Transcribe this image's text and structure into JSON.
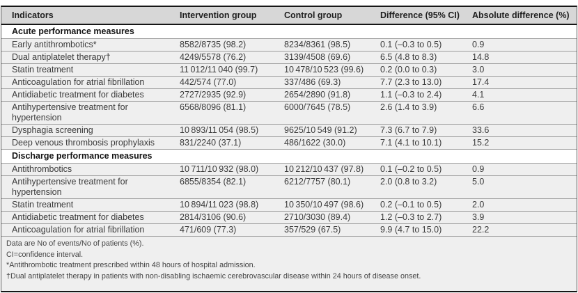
{
  "colors": {
    "header_bg": "#d7d7d7",
    "row_bg": "#efefef",
    "section_bg": "#ffffff",
    "rule_dark": "#161616",
    "rule_light": "#9b9b9b",
    "text": "#3b3b3b"
  },
  "table": {
    "columns": [
      "Indicators",
      "Intervention group",
      "Control group",
      "Difference (95% CI)",
      "Absolute difference (%)"
    ],
    "sections": [
      {
        "title": "Acute performance measures",
        "rows": [
          [
            "Early antithrombotics*",
            "8582/8735 (98.2)",
            "8234/8361 (98.5)",
            "0.1 (–0.3 to 0.5)",
            "0.9"
          ],
          [
            "Dual antiplatelet therapy†",
            "4249/5578 (76.2)",
            "3139/4508 (69.6)",
            "6.5 (4.8 to 8.3)",
            "14.8"
          ],
          [
            "Statin treatment",
            "11 012/11 040 (99.7)",
            "10 478/10 523 (99.6)",
            "0.2 (0.0 to 0.3)",
            "3.0"
          ],
          [
            "Anticoagulation for atrial fibrillation",
            "442/574 (77.0)",
            "337/486 (69.3)",
            "7.7 (2.3 to 13.0)",
            "17.4"
          ],
          [
            "Antidiabetic treatment for diabetes",
            "2727/2935 (92.9)",
            "2654/2890 (91.8)",
            "1.1 (–0.3 to 2.4)",
            "4.1"
          ],
          [
            "Antihypertensive treatment for hypertension",
            "6568/8096 (81.1)",
            "6000/7645 (78.5)",
            "2.6 (1.4 to 3.9)",
            "6.6"
          ],
          [
            "Dysphagia screening",
            "10 893/11 054 (98.5)",
            "9625/10 549 (91.2)",
            "7.3 (6.7 to 7.9)",
            "33.6"
          ],
          [
            "Deep venous thrombosis prophylaxis",
            "831/2240 (37.1)",
            "486/1622 (30.0)",
            "7.1 (4.1 to 10.1)",
            "15.2"
          ]
        ]
      },
      {
        "title": "Discharge performance measures",
        "rows": [
          [
            "Antithrombotics",
            "10 711/10 932 (98.0)",
            "10 212/10 437 (97.8)",
            "0.1 (–0.2 to 0.5)",
            "0.9"
          ],
          [
            "Antihypertensive treatment for hypertension",
            "6855/8354 (82.1)",
            "6212/7757 (80.1)",
            "2.0 (0.8 to 3.2)",
            "5.0"
          ],
          [
            "Statin treatment",
            "10 894/11 023 (98.8)",
            "10 350/10 497 (98.6)",
            "0.2 (–0.1 to 0.5)",
            "2.0"
          ],
          [
            "Antidiabetic treatment for diabetes",
            "2814/3106 (90.6)",
            "2710/3030 (89.4)",
            "1.2 (–0.3 to 2.7)",
            "3.9"
          ],
          [
            "Anticoagulation for atrial fibrillation",
            "471/609 (77.3)",
            "357/529 (67.5)",
            "9.9 (4.7 to 15.0)",
            "22.2"
          ]
        ]
      }
    ],
    "footnotes": [
      "Data are No of events/No of patients (%).",
      "CI=confidence interval.",
      "*Antithrombotic treatment prescribed within 48 hours of hospital admission.",
      "†Dual antiplatelet therapy in patients with non-disabling ischaemic cerebrovascular disease within 24 hours of disease onset."
    ]
  }
}
